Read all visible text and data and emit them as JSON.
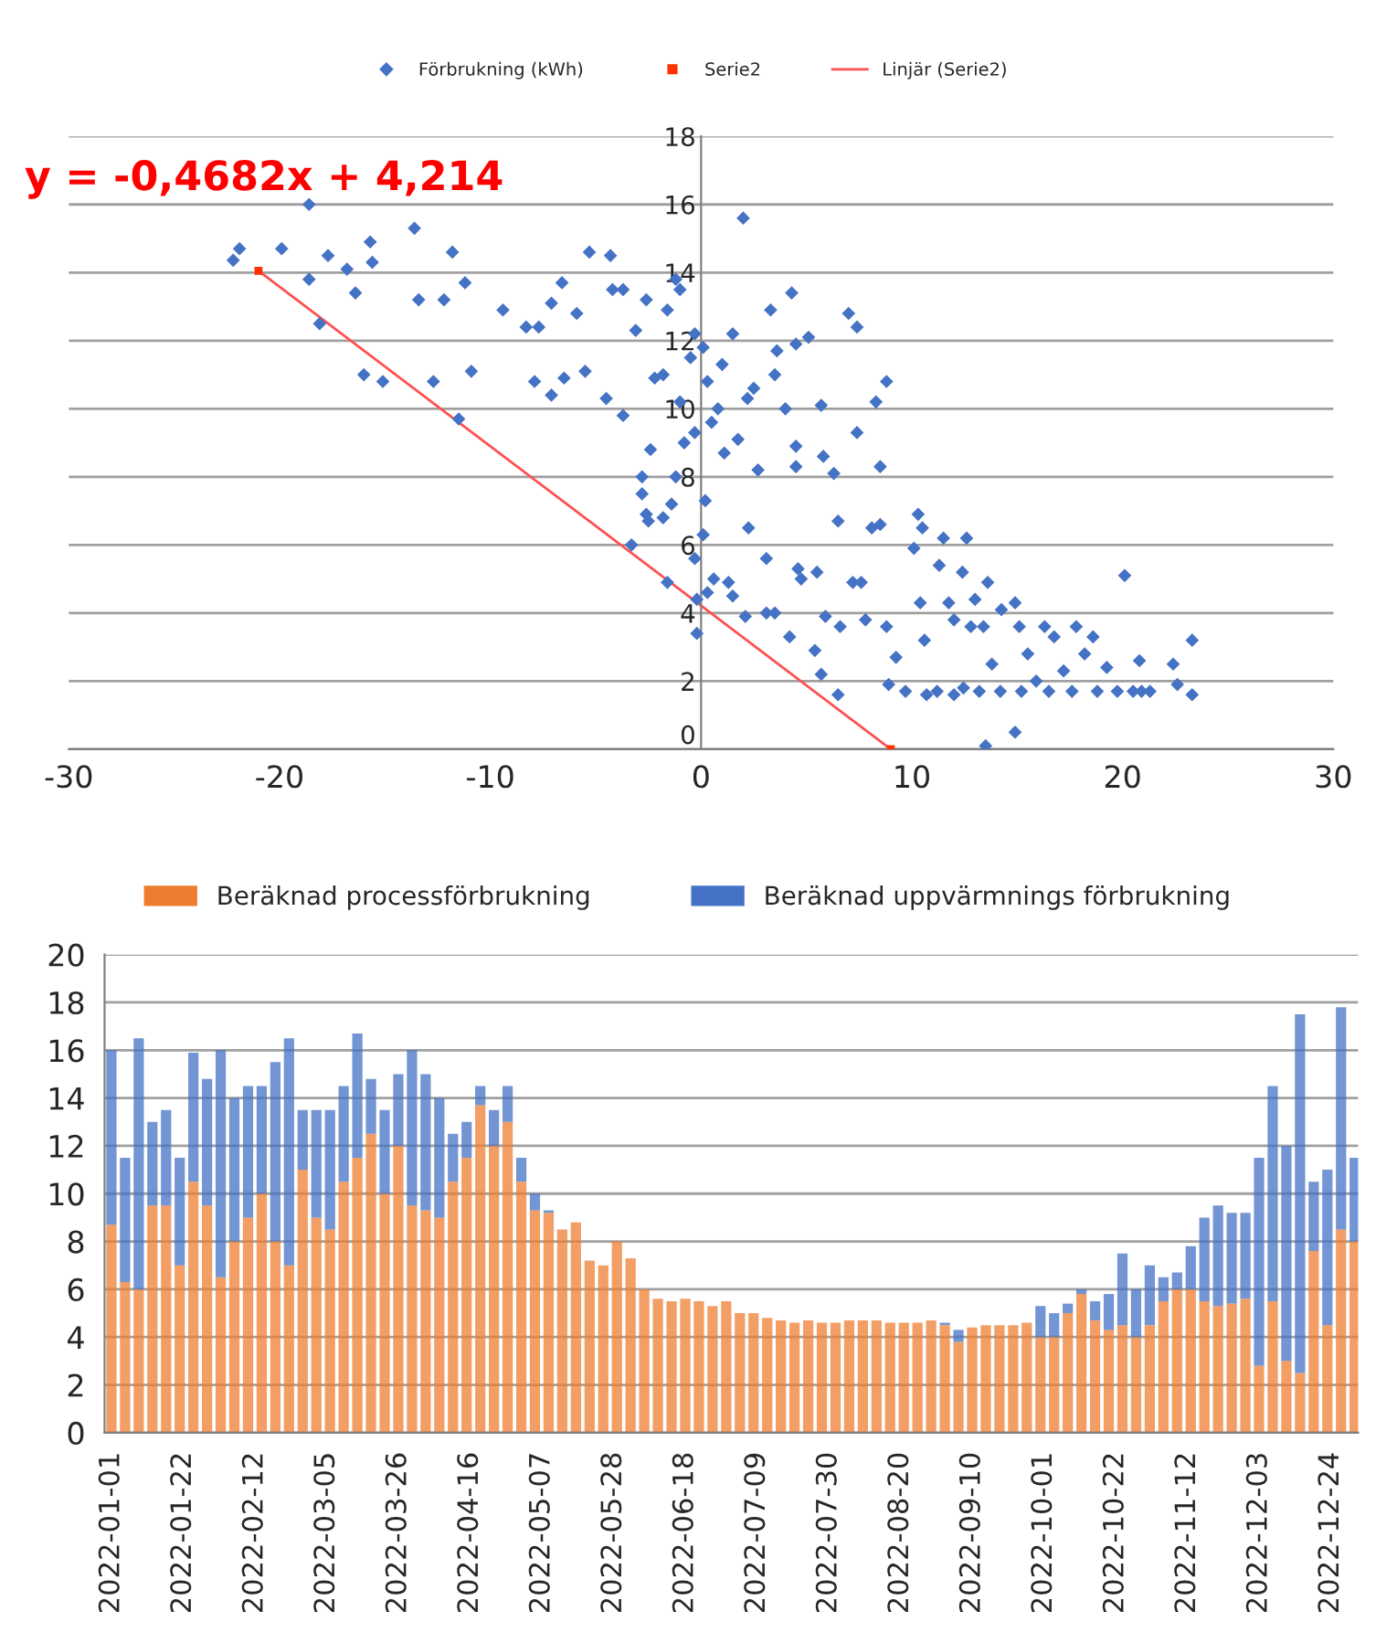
{
  "chart_data": [
    {
      "type": "scatter",
      "xlim": [
        -30,
        30
      ],
      "xticks": [
        -30,
        -20,
        -10,
        0,
        10,
        20,
        30
      ],
      "ylim": [
        0,
        18
      ],
      "yticks": [
        0,
        2,
        4,
        6,
        8,
        10,
        12,
        14,
        16,
        18
      ],
      "grid": "y",
      "legend": "top",
      "annotations": [
        "y = -0,4682x + 4,214"
      ],
      "series": [
        {
          "name": "Förbrukning (kWh)",
          "color": "#4472c4",
          "marker": "diamond",
          "x": [
            -22.2,
            -21.9,
            -18.6,
            -19.9,
            -18.6,
            -18.1,
            -17.7,
            -16.8,
            -16.4,
            -15.7,
            -15.6,
            -13.6,
            -13.4,
            -12.2,
            -11.8,
            -11.2,
            -9.4,
            -8.3,
            -7.7,
            -7.1,
            -6.6,
            -5.9,
            -5.3,
            -4.3,
            -4.2,
            -3.7,
            -3.1,
            -2.6,
            -1.6,
            -1.2,
            -1.0,
            -0.3,
            0.1,
            2.0,
            1.5,
            3.3,
            4.3,
            3.6,
            4.5,
            5.1,
            7.0,
            7.4,
            8.8,
            -16.0,
            -15.1,
            -12.7,
            -11.5,
            -10.9,
            -7.9,
            -7.1,
            -6.5,
            -5.5,
            -4.5,
            -3.7,
            -2.8,
            -2.4,
            -2.6,
            -2.5,
            -2.8,
            -3.3,
            -1.8,
            -1.4,
            -1.2,
            -0.8,
            -1.6,
            -0.3,
            -0.2,
            -0.2,
            -0.3,
            0.2,
            0.1,
            0.3,
            0.5,
            0.6,
            1.1,
            1.3,
            1.75,
            1.5,
            2.1,
            2.25,
            2.7,
            3.1,
            3.1,
            3.5,
            4.0,
            4.5,
            4.5,
            4.6,
            4.75,
            4.2,
            5.7,
            5.8,
            5.5,
            5.4,
            5.7,
            6.3,
            6.5,
            5.9,
            6.6,
            6.5,
            7.4,
            7.2,
            7.6,
            7.8,
            8.1,
            8.3,
            8.5,
            8.5,
            8.8,
            8.9,
            9.25,
            9.7,
            10.1,
            10.3,
            10.5,
            10.4,
            10.6,
            10.7,
            11.2,
            11.3,
            11.5,
            11.75,
            12.0,
            12.0,
            12.4,
            12.45,
            12.6,
            12.8,
            13.0,
            13.2,
            13.4,
            13.5,
            13.6,
            13.8,
            14.2,
            14.25,
            14.9,
            15.1,
            14.9,
            15.2,
            15.5,
            15.9,
            16.3,
            16.5,
            16.75,
            17.2,
            17.6,
            17.8,
            18.2,
            18.6,
            18.8,
            19.25,
            19.75,
            20.1,
            20.5,
            20.8,
            20.9,
            21.3,
            22.4,
            22.6,
            23.3,
            23.3,
            -0.5,
            -1.8,
            0.3,
            1.0,
            2.5,
            3.5,
            -2.2,
            -1.0,
            0.8,
            2.2
          ],
          "values": [
            14.36,
            14.7,
            16.0,
            14.7,
            13.8,
            12.5,
            14.5,
            14.1,
            13.4,
            14.9,
            14.3,
            15.3,
            13.2,
            13.2,
            14.6,
            13.7,
            12.9,
            12.4,
            12.4,
            13.1,
            13.7,
            12.8,
            14.6,
            14.5,
            13.5,
            13.5,
            12.3,
            13.2,
            12.9,
            13.8,
            13.5,
            12.2,
            11.8,
            15.6,
            12.2,
            12.9,
            13.4,
            11.7,
            11.9,
            12.1,
            12.8,
            12.4,
            10.8,
            11.0,
            10.8,
            10.8,
            9.7,
            11.1,
            10.8,
            10.4,
            10.9,
            11.1,
            10.3,
            9.8,
            7.5,
            8.8,
            6.9,
            6.7,
            8.0,
            6.0,
            6.8,
            7.2,
            8.0,
            9.0,
            4.9,
            5.6,
            4.4,
            3.4,
            9.3,
            7.3,
            6.3,
            4.6,
            9.6,
            5.0,
            8.7,
            4.9,
            9.1,
            4.5,
            3.9,
            6.5,
            8.2,
            5.6,
            4.0,
            4.0,
            10.0,
            8.9,
            8.3,
            5.3,
            5.0,
            3.3,
            10.1,
            8.6,
            5.2,
            2.9,
            2.2,
            8.1,
            6.7,
            3.9,
            3.6,
            1.6,
            9.3,
            4.9,
            4.9,
            3.8,
            6.5,
            10.2,
            6.6,
            8.3,
            3.6,
            1.9,
            2.7,
            1.7,
            5.9,
            6.9,
            6.5,
            4.3,
            3.2,
            1.6,
            1.7,
            5.4,
            6.2,
            4.3,
            3.8,
            1.6,
            5.2,
            1.8,
            6.2,
            3.6,
            4.4,
            1.7,
            3.6,
            0.1,
            4.9,
            2.5,
            1.7,
            4.1,
            4.3,
            3.6,
            0.5,
            1.7,
            2.8,
            2.0,
            3.6,
            1.7,
            3.3,
            2.3,
            1.7,
            3.6,
            2.8,
            3.3,
            1.7,
            2.4,
            1.7,
            5.1,
            1.7,
            2.6,
            1.7,
            1.7,
            2.5,
            1.9,
            3.2,
            1.6,
            11.5,
            11.0,
            10.8,
            11.3,
            10.6,
            11.0,
            10.9,
            10.2,
            10.0,
            10.3
          ]
        },
        {
          "name": "Serie2",
          "color": "#ff3300",
          "marker": "square",
          "x": [
            -21,
            9
          ],
          "values": [
            14.05,
            0.0
          ]
        },
        {
          "name": "Linjär (Serie2)",
          "type": "line",
          "color": "#ff5050",
          "marker": "none",
          "x": [
            -21,
            9
          ],
          "values": [
            14.05,
            0.0
          ]
        }
      ]
    },
    {
      "type": "bar",
      "stacked": true,
      "ylim": [
        0,
        20
      ],
      "yticks": [
        0,
        2,
        4,
        6,
        8,
        10,
        12,
        14,
        16,
        18,
        20
      ],
      "grid": "y",
      "legend": "top",
      "xlim": [
        "2021-12-30",
        "2023-01-01"
      ],
      "xticks": [
        "2022-01-01",
        "2022-01-22",
        "2022-02-12",
        "2022-03-05",
        "2022-03-26",
        "2022-04-16",
        "2022-05-07",
        "2022-05-28",
        "2022-06-18",
        "2022-07-09",
        "2022-07-30",
        "2022-08-20",
        "2022-09-10",
        "2022-10-01",
        "2022-10-22",
        "2022-11-12",
        "2022-12-03",
        "2022-12-24"
      ],
      "x": [
        "2022-01-01",
        "2022-01-05",
        "2022-01-09",
        "2022-01-13",
        "2022-01-17",
        "2022-01-21",
        "2022-01-25",
        "2022-01-29",
        "2022-02-02",
        "2022-02-06",
        "2022-02-10",
        "2022-02-14",
        "2022-02-18",
        "2022-02-22",
        "2022-02-26",
        "2022-03-02",
        "2022-03-06",
        "2022-03-10",
        "2022-03-14",
        "2022-03-18",
        "2022-03-22",
        "2022-03-26",
        "2022-03-30",
        "2022-04-03",
        "2022-04-07",
        "2022-04-11",
        "2022-04-15",
        "2022-04-19",
        "2022-04-23",
        "2022-04-27",
        "2022-05-01",
        "2022-05-05",
        "2022-05-09",
        "2022-05-13",
        "2022-05-17",
        "2022-05-21",
        "2022-05-25",
        "2022-05-29",
        "2022-06-02",
        "2022-06-06",
        "2022-06-10",
        "2022-06-14",
        "2022-06-18",
        "2022-06-22",
        "2022-06-26",
        "2022-06-30",
        "2022-07-04",
        "2022-07-08",
        "2022-07-12",
        "2022-07-16",
        "2022-07-20",
        "2022-07-24",
        "2022-07-28",
        "2022-08-01",
        "2022-08-05",
        "2022-08-09",
        "2022-08-13",
        "2022-08-17",
        "2022-08-21",
        "2022-08-25",
        "2022-08-29",
        "2022-09-02",
        "2022-09-06",
        "2022-09-10",
        "2022-09-14",
        "2022-09-18",
        "2022-09-22",
        "2022-09-26",
        "2022-09-30",
        "2022-10-04",
        "2022-10-08",
        "2022-10-12",
        "2022-10-16",
        "2022-10-20",
        "2022-10-24",
        "2022-10-28",
        "2022-11-01",
        "2022-11-05",
        "2022-11-09",
        "2022-11-13",
        "2022-11-17",
        "2022-11-21",
        "2022-11-25",
        "2022-11-29",
        "2022-12-03",
        "2022-12-07",
        "2022-12-11",
        "2022-12-15",
        "2022-12-19",
        "2022-12-23",
        "2022-12-27",
        "2022-12-31"
      ],
      "series": [
        {
          "name": "Beräknad processförbrukning",
          "color": "#ed7d31",
          "values": [
            8.7,
            6.3,
            6,
            9.5,
            9.5,
            7,
            10.5,
            9.5,
            6.5,
            8,
            9,
            10,
            8,
            7,
            11,
            9,
            8.5,
            10.5,
            11.5,
            12.5,
            10,
            12,
            9.5,
            9.3,
            9,
            10.5,
            11.5,
            13.7,
            12,
            13,
            10.5,
            9.3,
            9.2,
            8.5,
            8.8,
            7.2,
            7.0,
            8.0,
            7.3,
            6.0,
            5.6,
            5.5,
            5.6,
            5.5,
            5.3,
            5.5,
            5.0,
            5.0,
            4.8,
            4.7,
            4.6,
            4.7,
            4.6,
            4.6,
            4.7,
            4.7,
            4.7,
            4.6,
            4.6,
            4.6,
            4.7,
            4.5,
            3.8,
            4.4,
            4.5,
            4.5,
            4.5,
            4.6,
            4.0,
            4.0,
            5.0,
            5.8,
            4.7,
            4.3,
            4.5,
            4.0,
            4.5,
            5.5,
            6.0,
            6.0,
            5.5,
            5.3,
            5.4,
            5.6,
            2.8,
            5.5,
            3.0,
            2.5,
            7.6,
            4.5,
            8.5,
            8.0
          ]
        },
        {
          "name": "Beräknad uppvärmnings förbrukning",
          "color": "#4472c4",
          "values": [
            7.3,
            5.2,
            10.5,
            3.5,
            4,
            4.5,
            5.4,
            5.3,
            9.5,
            6,
            5.5,
            4.5,
            7.5,
            9.5,
            2.5,
            4.5,
            5,
            4,
            5.2,
            2.3,
            3.5,
            3,
            6.5,
            5.7,
            5,
            2,
            1.5,
            0.8,
            1.5,
            1.5,
            1,
            0.7,
            0.1,
            0,
            0,
            0,
            0,
            0,
            0,
            0,
            0,
            0,
            0,
            0,
            0,
            0,
            0,
            0,
            0,
            0,
            0,
            0,
            0,
            0,
            0,
            0,
            0,
            0,
            0,
            0,
            0,
            0.1,
            0.5,
            0,
            0,
            0,
            0,
            0,
            1.3,
            1.0,
            0.4,
            0.2,
            0.8,
            1.5,
            3.0,
            2.0,
            2.5,
            1.0,
            0.7,
            1.8,
            3.5,
            4.2,
            3.8,
            3.6,
            8.7,
            9.0,
            9.0,
            15.0,
            2.9,
            6.5,
            9.3,
            3.5
          ]
        }
      ]
    }
  ]
}
